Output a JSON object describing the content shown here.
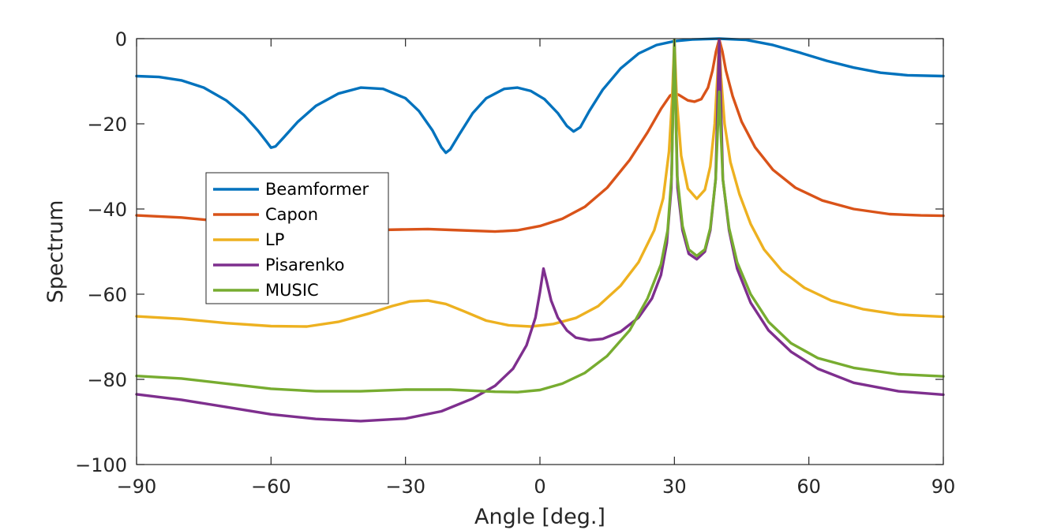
{
  "chart_data": {
    "type": "line",
    "xlabel": "Angle [deg.]",
    "ylabel": "Spectrum",
    "xlim": [
      -90,
      90
    ],
    "ylim": [
      -100,
      0
    ],
    "xticks": [
      -90,
      -60,
      -30,
      0,
      30,
      60,
      90
    ],
    "yticks": [
      0,
      -20,
      -40,
      -60,
      -80,
      -100
    ],
    "xtick_labels": [
      "−90",
      "−60",
      "−30",
      "0",
      "30",
      "60",
      "90"
    ],
    "ytick_labels": [
      "0",
      "−20",
      "−40",
      "−60",
      "−80",
      "−100"
    ],
    "grid": false,
    "legend_position": "center-left",
    "series": [
      {
        "name": "Beamformer",
        "color": "#0072BD",
        "points": [
          [
            -90,
            -8.8
          ],
          [
            -85,
            -9.0
          ],
          [
            -80,
            -9.8
          ],
          [
            -75,
            -11.5
          ],
          [
            -70,
            -14.5
          ],
          [
            -66,
            -18.0
          ],
          [
            -63,
            -21.5
          ],
          [
            -61,
            -24.2
          ],
          [
            -60,
            -25.6
          ],
          [
            -59,
            -25.3
          ],
          [
            -57,
            -23.0
          ],
          [
            -54,
            -19.5
          ],
          [
            -50,
            -15.8
          ],
          [
            -45,
            -12.9
          ],
          [
            -40,
            -11.5
          ],
          [
            -35,
            -11.8
          ],
          [
            -30,
            -14.0
          ],
          [
            -27,
            -17.0
          ],
          [
            -24,
            -21.5
          ],
          [
            -22,
            -25.5
          ],
          [
            -21,
            -26.8
          ],
          [
            -20,
            -26.0
          ],
          [
            -18,
            -22.5
          ],
          [
            -15,
            -17.5
          ],
          [
            -12,
            -14.0
          ],
          [
            -8,
            -11.8
          ],
          [
            -5,
            -11.5
          ],
          [
            -2,
            -12.3
          ],
          [
            1,
            -14.2
          ],
          [
            4,
            -17.5
          ],
          [
            6,
            -20.5
          ],
          [
            7.5,
            -21.8
          ],
          [
            9,
            -20.8
          ],
          [
            11,
            -17.0
          ],
          [
            14,
            -12.0
          ],
          [
            18,
            -7.0
          ],
          [
            22,
            -3.5
          ],
          [
            26,
            -1.5
          ],
          [
            30,
            -0.6
          ],
          [
            34,
            -0.2
          ],
          [
            40,
            0
          ],
          [
            46,
            -0.3
          ],
          [
            52,
            -1.5
          ],
          [
            58,
            -3.3
          ],
          [
            64,
            -5.2
          ],
          [
            70,
            -6.8
          ],
          [
            76,
            -8.0
          ],
          [
            82,
            -8.6
          ],
          [
            90,
            -8.8
          ]
        ]
      },
      {
        "name": "Capon",
        "color": "#D95319",
        "points": [
          [
            -90,
            -41.5
          ],
          [
            -80,
            -42.0
          ],
          [
            -70,
            -43.0
          ],
          [
            -60,
            -44.0
          ],
          [
            -50,
            -44.8
          ],
          [
            -40,
            -45.0
          ],
          [
            -30,
            -44.8
          ],
          [
            -25,
            -44.7
          ],
          [
            -20,
            -44.9
          ],
          [
            -10,
            -45.3
          ],
          [
            -5,
            -45.0
          ],
          [
            0,
            -44.0
          ],
          [
            5,
            -42.3
          ],
          [
            10,
            -39.5
          ],
          [
            15,
            -35.0
          ],
          [
            20,
            -28.5
          ],
          [
            24,
            -22.0
          ],
          [
            27,
            -16.5
          ],
          [
            29,
            -13.4
          ],
          [
            30,
            -12.8
          ],
          [
            31,
            -13.2
          ],
          [
            33,
            -14.5
          ],
          [
            34.5,
            -14.8
          ],
          [
            36,
            -14.2
          ],
          [
            37.5,
            -11.5
          ],
          [
            38.5,
            -7.5
          ],
          [
            39.3,
            -3.0
          ],
          [
            40,
            -0.2
          ],
          [
            40.7,
            -3.0
          ],
          [
            41.5,
            -7.5
          ],
          [
            43,
            -13.5
          ],
          [
            45,
            -19.5
          ],
          [
            48,
            -25.5
          ],
          [
            52,
            -30.8
          ],
          [
            57,
            -35.0
          ],
          [
            63,
            -38.0
          ],
          [
            70,
            -40.0
          ],
          [
            78,
            -41.2
          ],
          [
            85,
            -41.5
          ],
          [
            90,
            -41.6
          ]
        ]
      },
      {
        "name": "LP",
        "color": "#EDB120",
        "points": [
          [
            -90,
            -65.2
          ],
          [
            -80,
            -65.8
          ],
          [
            -70,
            -66.8
          ],
          [
            -60,
            -67.5
          ],
          [
            -52,
            -67.6
          ],
          [
            -45,
            -66.5
          ],
          [
            -38,
            -64.5
          ],
          [
            -33,
            -62.8
          ],
          [
            -29,
            -61.7
          ],
          [
            -25,
            -61.5
          ],
          [
            -21,
            -62.3
          ],
          [
            -17,
            -64.0
          ],
          [
            -12,
            -66.2
          ],
          [
            -7,
            -67.3
          ],
          [
            -2,
            -67.6
          ],
          [
            3,
            -67.0
          ],
          [
            8,
            -65.6
          ],
          [
            13,
            -62.8
          ],
          [
            18,
            -58.0
          ],
          [
            22,
            -52.5
          ],
          [
            25.5,
            -45.0
          ],
          [
            27.5,
            -37.5
          ],
          [
            28.8,
            -26.5
          ],
          [
            29.5,
            -14.0
          ],
          [
            30,
            -0.5
          ],
          [
            30.5,
            -14.0
          ],
          [
            31.5,
            -27.5
          ],
          [
            33,
            -35.2
          ],
          [
            35,
            -37.6
          ],
          [
            36.8,
            -35.5
          ],
          [
            38,
            -30.0
          ],
          [
            39,
            -20.0
          ],
          [
            39.6,
            -9.0
          ],
          [
            40,
            -0.2
          ],
          [
            40.4,
            -9.0
          ],
          [
            41.2,
            -20.0
          ],
          [
            42.5,
            -29.0
          ],
          [
            44.5,
            -36.5
          ],
          [
            47,
            -43.5
          ],
          [
            50,
            -49.5
          ],
          [
            54,
            -54.5
          ],
          [
            59,
            -58.5
          ],
          [
            65,
            -61.5
          ],
          [
            72,
            -63.5
          ],
          [
            80,
            -64.8
          ],
          [
            90,
            -65.3
          ]
        ]
      },
      {
        "name": "Pisarenko",
        "color": "#7E2F8E",
        "points": [
          [
            -90,
            -83.5
          ],
          [
            -80,
            -84.8
          ],
          [
            -70,
            -86.5
          ],
          [
            -60,
            -88.2
          ],
          [
            -50,
            -89.3
          ],
          [
            -40,
            -89.8
          ],
          [
            -30,
            -89.2
          ],
          [
            -22,
            -87.5
          ],
          [
            -15,
            -84.5
          ],
          [
            -10,
            -81.5
          ],
          [
            -6,
            -77.5
          ],
          [
            -3,
            -72.0
          ],
          [
            -1,
            -65.5
          ],
          [
            0,
            -59.5
          ],
          [
            0.8,
            -54.0
          ],
          [
            1.5,
            -57.0
          ],
          [
            2.5,
            -61.5
          ],
          [
            4,
            -65.5
          ],
          [
            6,
            -68.5
          ],
          [
            8,
            -70.2
          ],
          [
            11,
            -70.8
          ],
          [
            14,
            -70.5
          ],
          [
            18,
            -68.8
          ],
          [
            22,
            -65.5
          ],
          [
            25,
            -61.0
          ],
          [
            27,
            -55.5
          ],
          [
            28.3,
            -48.0
          ],
          [
            29.3,
            -35.0
          ],
          [
            30,
            -0.5
          ],
          [
            30.7,
            -35.0
          ],
          [
            31.8,
            -45.0
          ],
          [
            33.2,
            -50.5
          ],
          [
            35,
            -51.8
          ],
          [
            36.8,
            -50.0
          ],
          [
            38,
            -45.0
          ],
          [
            39.2,
            -33.0
          ],
          [
            40,
            -0.3
          ],
          [
            40.8,
            -33.0
          ],
          [
            42.2,
            -45.0
          ],
          [
            44,
            -54.0
          ],
          [
            47,
            -62.0
          ],
          [
            51,
            -68.5
          ],
          [
            56,
            -73.5
          ],
          [
            62,
            -77.5
          ],
          [
            70,
            -80.8
          ],
          [
            80,
            -82.8
          ],
          [
            90,
            -83.6
          ]
        ]
      },
      {
        "name": "MUSIC",
        "color": "#77AC30",
        "points": [
          [
            -90,
            -79.2
          ],
          [
            -80,
            -79.8
          ],
          [
            -70,
            -81.0
          ],
          [
            -60,
            -82.2
          ],
          [
            -50,
            -82.8
          ],
          [
            -40,
            -82.8
          ],
          [
            -30,
            -82.4
          ],
          [
            -20,
            -82.4
          ],
          [
            -10,
            -82.9
          ],
          [
            -5,
            -83.0
          ],
          [
            0,
            -82.5
          ],
          [
            5,
            -81.0
          ],
          [
            10,
            -78.5
          ],
          [
            15,
            -74.5
          ],
          [
            20,
            -68.5
          ],
          [
            24,
            -61.0
          ],
          [
            27,
            -53.0
          ],
          [
            28.5,
            -45.0
          ],
          [
            29.4,
            -32.0
          ],
          [
            30,
            -0.3
          ],
          [
            30.6,
            -32.0
          ],
          [
            31.8,
            -44.0
          ],
          [
            33.2,
            -49.5
          ],
          [
            35,
            -51.0
          ],
          [
            36.8,
            -49.5
          ],
          [
            38,
            -44.5
          ],
          [
            39.2,
            -33.0
          ],
          [
            40,
            -12.5
          ],
          [
            40.8,
            -33.0
          ],
          [
            42.2,
            -44.5
          ],
          [
            44,
            -52.5
          ],
          [
            47,
            -60.0
          ],
          [
            51,
            -66.5
          ],
          [
            56,
            -71.5
          ],
          [
            62,
            -75.0
          ],
          [
            70,
            -77.3
          ],
          [
            80,
            -78.8
          ],
          [
            90,
            -79.3
          ]
        ]
      }
    ]
  }
}
